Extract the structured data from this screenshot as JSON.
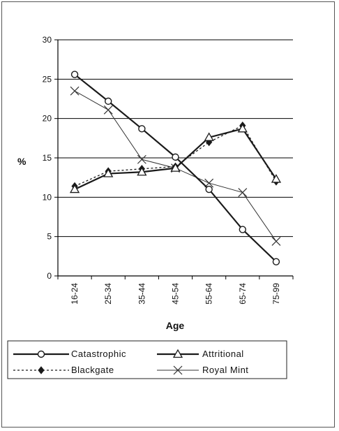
{
  "chart_data": {
    "type": "line",
    "title": "",
    "xlabel": "Age",
    "ylabel": "%",
    "ylim": [
      0,
      30
    ],
    "yticks": [
      0,
      5,
      10,
      15,
      20,
      25,
      30
    ],
    "grid": "horizontal",
    "legend_position": "bottom",
    "categories": [
      "16-24",
      "25-34",
      "35-44",
      "45-54",
      "55-64",
      "65-74",
      "75-99"
    ],
    "series": [
      {
        "name": "Catastrophic",
        "marker": "circle-open",
        "dash": "solid",
        "weight": "heavy",
        "color": "#1a1a1a",
        "values": [
          25.6,
          22.2,
          18.7,
          15.1,
          11.0,
          5.9,
          1.8
        ]
      },
      {
        "name": "Attritional",
        "marker": "triangle-open",
        "dash": "solid",
        "weight": "heavy",
        "color": "#1a1a1a",
        "values": [
          11.0,
          13.0,
          13.2,
          13.7,
          17.6,
          18.7,
          12.3
        ]
      },
      {
        "name": "Blackgate",
        "marker": "diamond-filled",
        "dash": "dotted",
        "weight": "normal",
        "color": "#1a1a1a",
        "values": [
          11.4,
          13.3,
          13.6,
          13.9,
          17.0,
          19.1,
          12.0
        ]
      },
      {
        "name": "Royal Mint",
        "marker": "x",
        "dash": "solid",
        "weight": "thin",
        "color": "#333333",
        "values": [
          23.5,
          21.1,
          14.8,
          13.7,
          11.8,
          10.6,
          4.4
        ]
      }
    ]
  }
}
